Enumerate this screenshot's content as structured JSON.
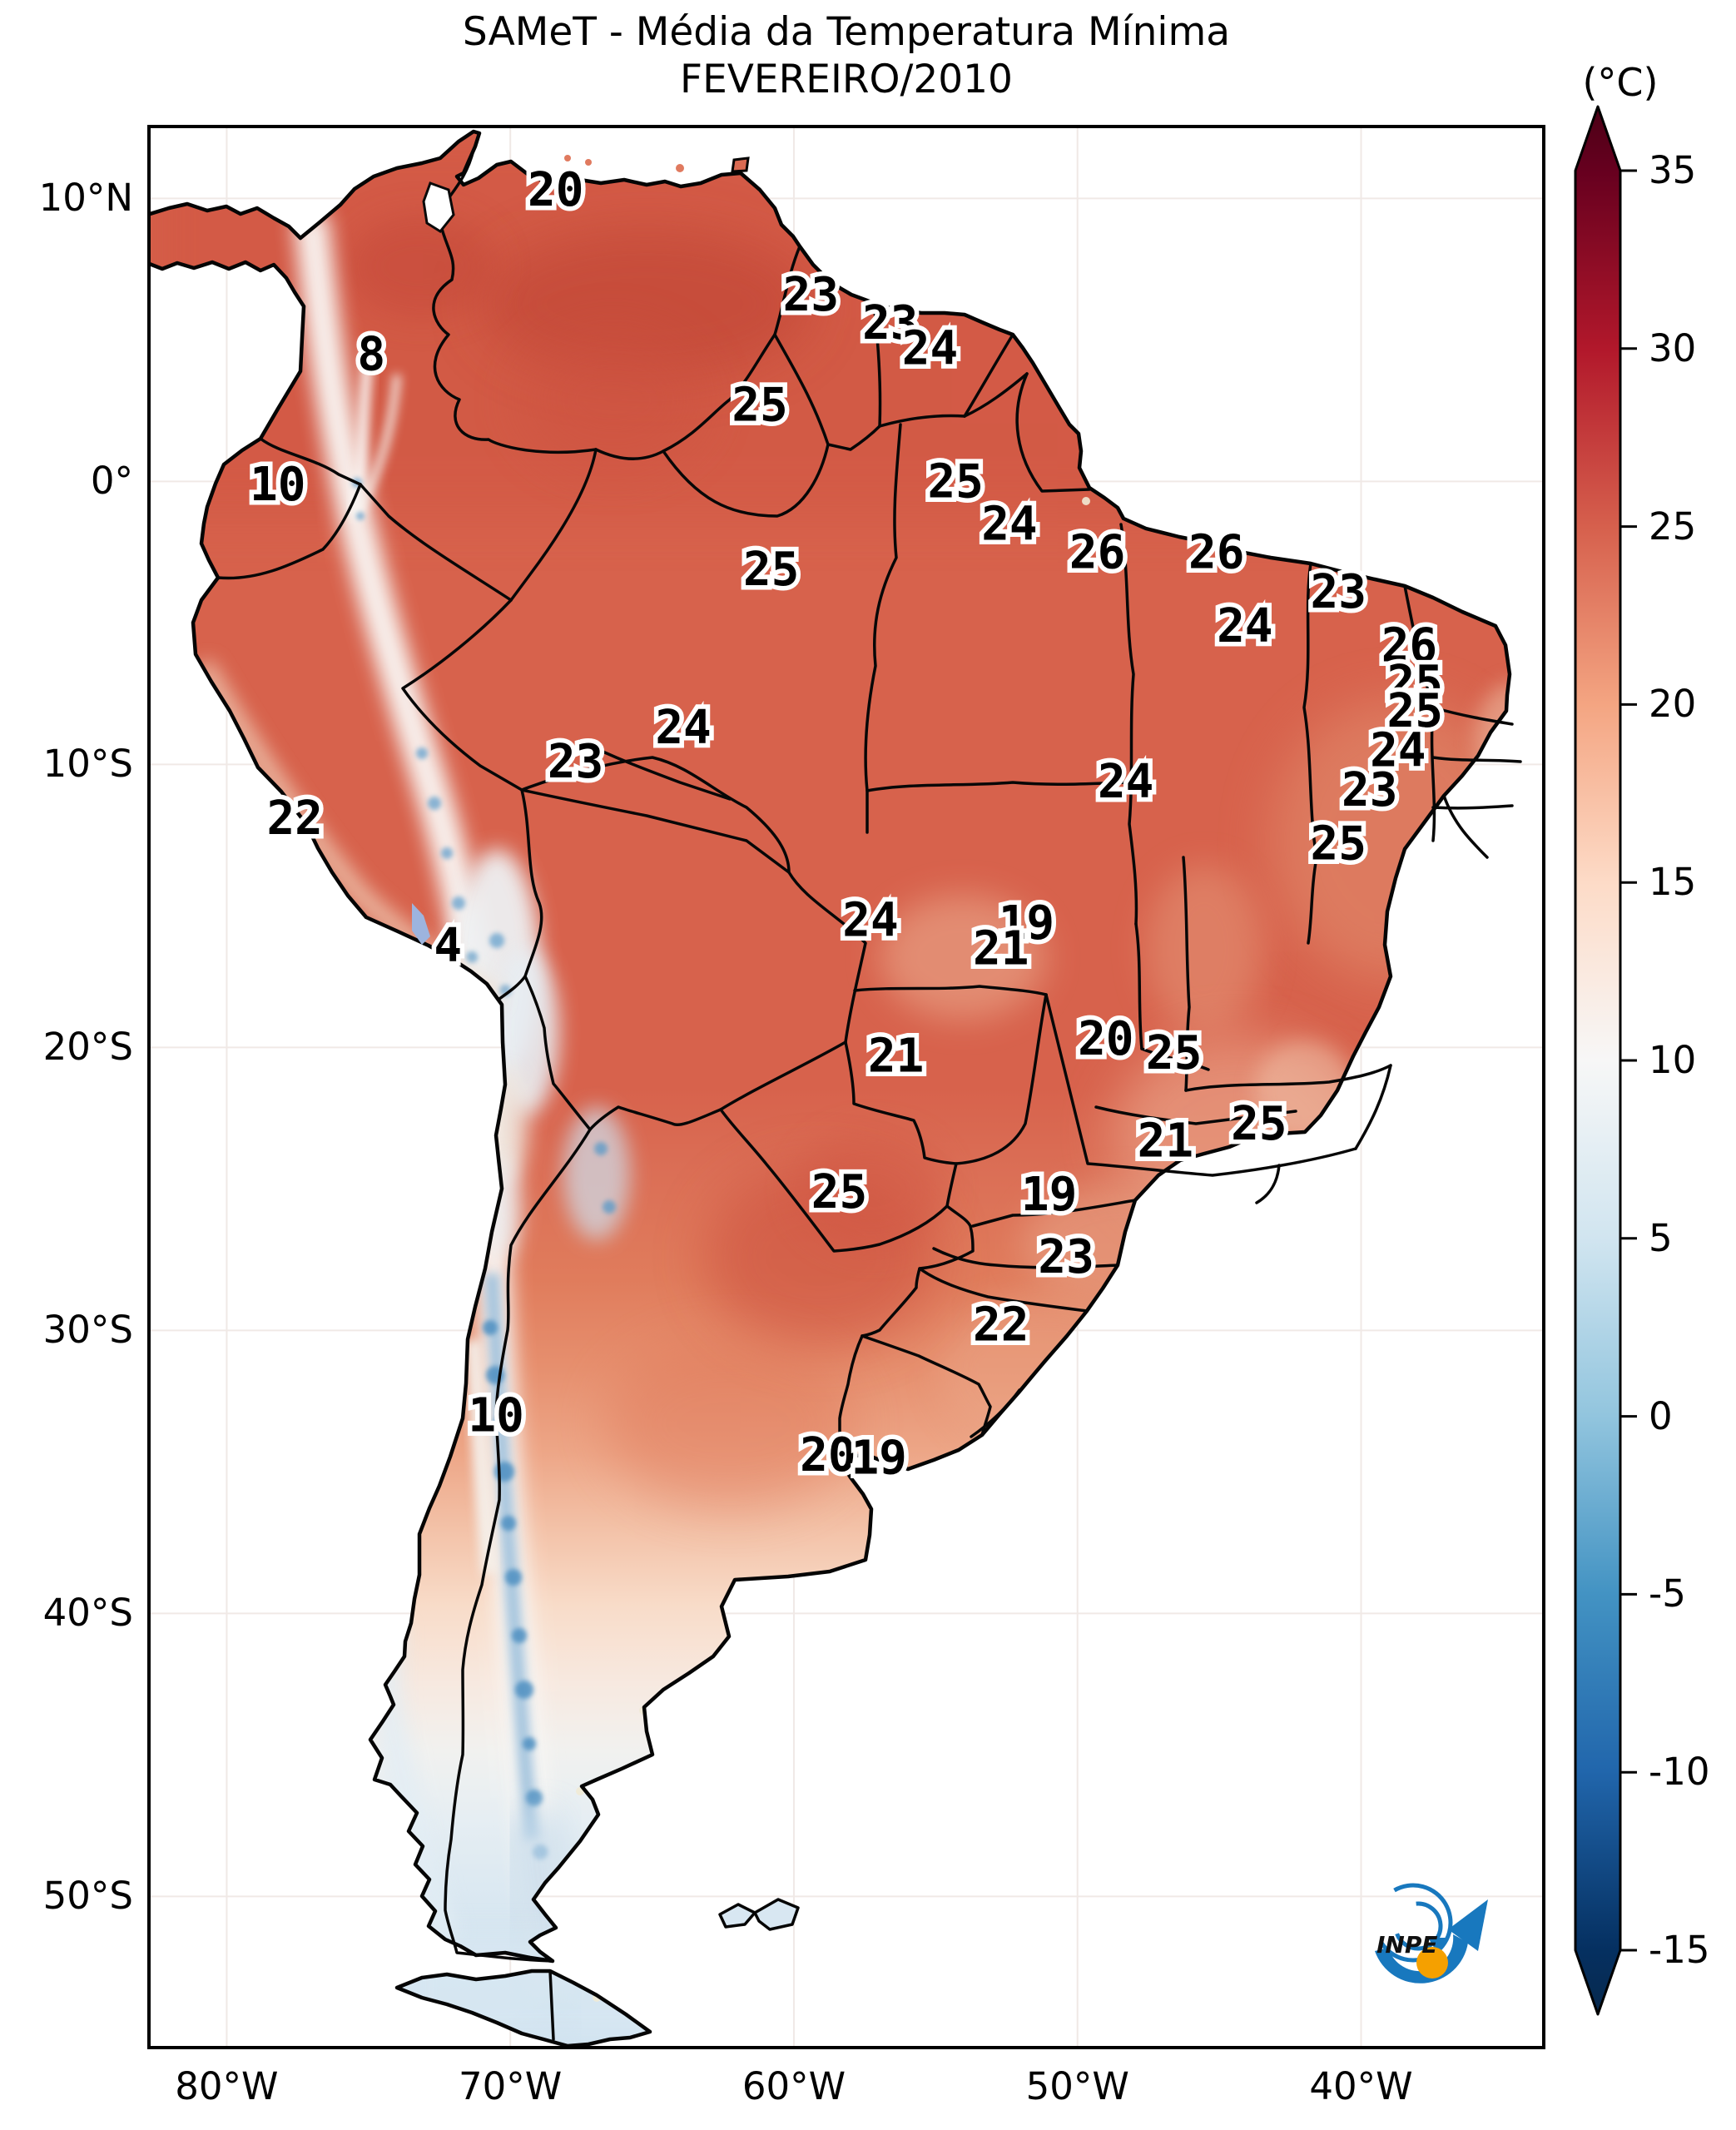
{
  "title": {
    "line1": "SAMeT - Média da Temperatura Mínima",
    "line2": "FEVEREIRO/2010"
  },
  "colorbar": {
    "unit_label": "(°C)",
    "ticks": [
      35,
      30,
      25,
      20,
      15,
      10,
      5,
      0,
      -5,
      -10,
      -15
    ],
    "vmin": -15,
    "vmax": 35,
    "extend": "both",
    "stops": [
      [
        35,
        "#67001f"
      ],
      [
        30,
        "#b2182b"
      ],
      [
        25,
        "#d6604d"
      ],
      [
        20,
        "#f4a582"
      ],
      [
        15,
        "#fddbc7"
      ],
      [
        10,
        "#f7f7f7"
      ],
      [
        5,
        "#d1e5f0"
      ],
      [
        0,
        "#92c5de"
      ],
      [
        -5,
        "#4393c3"
      ],
      [
        -10,
        "#2166ac"
      ],
      [
        -15,
        "#053061"
      ]
    ],
    "over_color": "#4b0016",
    "under_color": "#07294d"
  },
  "axes": {
    "lat_ticks": [
      {
        "label": "10°N",
        "deg": 10
      },
      {
        "label": "0°",
        "deg": 0
      },
      {
        "label": "10°S",
        "deg": -10
      },
      {
        "label": "20°S",
        "deg": -20
      },
      {
        "label": "30°S",
        "deg": -30
      },
      {
        "label": "40°S",
        "deg": -40
      },
      {
        "label": "50°S",
        "deg": -50
      }
    ],
    "lon_ticks": [
      {
        "label": "80°W",
        "deg": -80
      },
      {
        "label": "70°W",
        "deg": -70
      },
      {
        "label": "60°W",
        "deg": -60
      },
      {
        "label": "50°W",
        "deg": -50
      },
      {
        "label": "40°W",
        "deg": -40
      }
    ]
  },
  "logo": {
    "text": "INPE",
    "blue": "#1878be",
    "orange": "#f5a000"
  },
  "chart_data": {
    "type": "heatmap",
    "title": "SAMeT - Média da Temperatura Mínima",
    "subtitle": "FEVEREIRO/2010",
    "unit": "°C",
    "colorbar_ticks": [
      35,
      30,
      25,
      20,
      15,
      10,
      5,
      0,
      -5,
      -10,
      -15
    ],
    "colorbar_range": [
      -15,
      35
    ],
    "colormap": "RdBu_r",
    "legend_position": "right",
    "grid": true,
    "map_extent": {
      "lon_min": -82.8,
      "lon_max": -33.5,
      "lat_min": -55.4,
      "lat_max": 12.6
    },
    "value_labels": [
      {
        "v": 20,
        "lon": -68.4,
        "lat": 10.3
      },
      {
        "v": 23,
        "lon": -59.4,
        "lat": 6.6
      },
      {
        "v": 23,
        "lon": -56.6,
        "lat": 5.6
      },
      {
        "v": 24,
        "lon": -55.2,
        "lat": 4.7
      },
      {
        "v": 8,
        "lon": -74.9,
        "lat": 4.5
      },
      {
        "v": 25,
        "lon": -61.2,
        "lat": 2.7
      },
      {
        "v": 25,
        "lon": -54.3,
        "lat": 0.0
      },
      {
        "v": 10,
        "lon": -78.2,
        "lat": -0.1
      },
      {
        "v": 24,
        "lon": -52.4,
        "lat": -1.5
      },
      {
        "v": 26,
        "lon": -49.3,
        "lat": -2.5
      },
      {
        "v": 26,
        "lon": -45.1,
        "lat": -2.5
      },
      {
        "v": 25,
        "lon": -60.8,
        "lat": -3.1
      },
      {
        "v": 23,
        "lon": -40.8,
        "lat": -3.9
      },
      {
        "v": 24,
        "lon": -44.1,
        "lat": -5.1
      },
      {
        "v": 26,
        "lon": -38.3,
        "lat": -5.8
      },
      {
        "v": 25,
        "lon": -38.1,
        "lat": -7.1
      },
      {
        "v": 25,
        "lon": -38.1,
        "lat": -8.1
      },
      {
        "v": 24,
        "lon": -63.9,
        "lat": -8.7
      },
      {
        "v": 24,
        "lon": -38.7,
        "lat": -9.5
      },
      {
        "v": 23,
        "lon": -67.7,
        "lat": -9.9
      },
      {
        "v": 24,
        "lon": -48.3,
        "lat": -10.6
      },
      {
        "v": 23,
        "lon": -39.7,
        "lat": -10.9
      },
      {
        "v": 22,
        "lon": -77.6,
        "lat": -11.9
      },
      {
        "v": 25,
        "lon": -40.8,
        "lat": -12.8
      },
      {
        "v": 24,
        "lon": -57.3,
        "lat": -15.5
      },
      {
        "v": 19,
        "lon": -51.8,
        "lat": -15.6
      },
      {
        "v": 21,
        "lon": -52.7,
        "lat": -16.5
      },
      {
        "v": 4,
        "lon": -72.2,
        "lat": -16.4
      },
      {
        "v": 20,
        "lon": -49.0,
        "lat": -19.7
      },
      {
        "v": 25,
        "lon": -46.6,
        "lat": -20.2
      },
      {
        "v": 21,
        "lon": -56.4,
        "lat": -20.3
      },
      {
        "v": 25,
        "lon": -43.6,
        "lat": -22.7
      },
      {
        "v": 21,
        "lon": -46.9,
        "lat": -23.3
      },
      {
        "v": 25,
        "lon": -58.4,
        "lat": -25.1
      },
      {
        "v": 19,
        "lon": -51.0,
        "lat": -25.2
      },
      {
        "v": 23,
        "lon": -50.4,
        "lat": -27.4
      },
      {
        "v": 22,
        "lon": -52.7,
        "lat": -29.8
      },
      {
        "v": 10,
        "lon": -70.5,
        "lat": -33.0
      },
      {
        "v": 20,
        "lon": -58.8,
        "lat": -34.4
      },
      {
        "v": 19,
        "lon": -57.0,
        "lat": -34.5
      }
    ]
  }
}
